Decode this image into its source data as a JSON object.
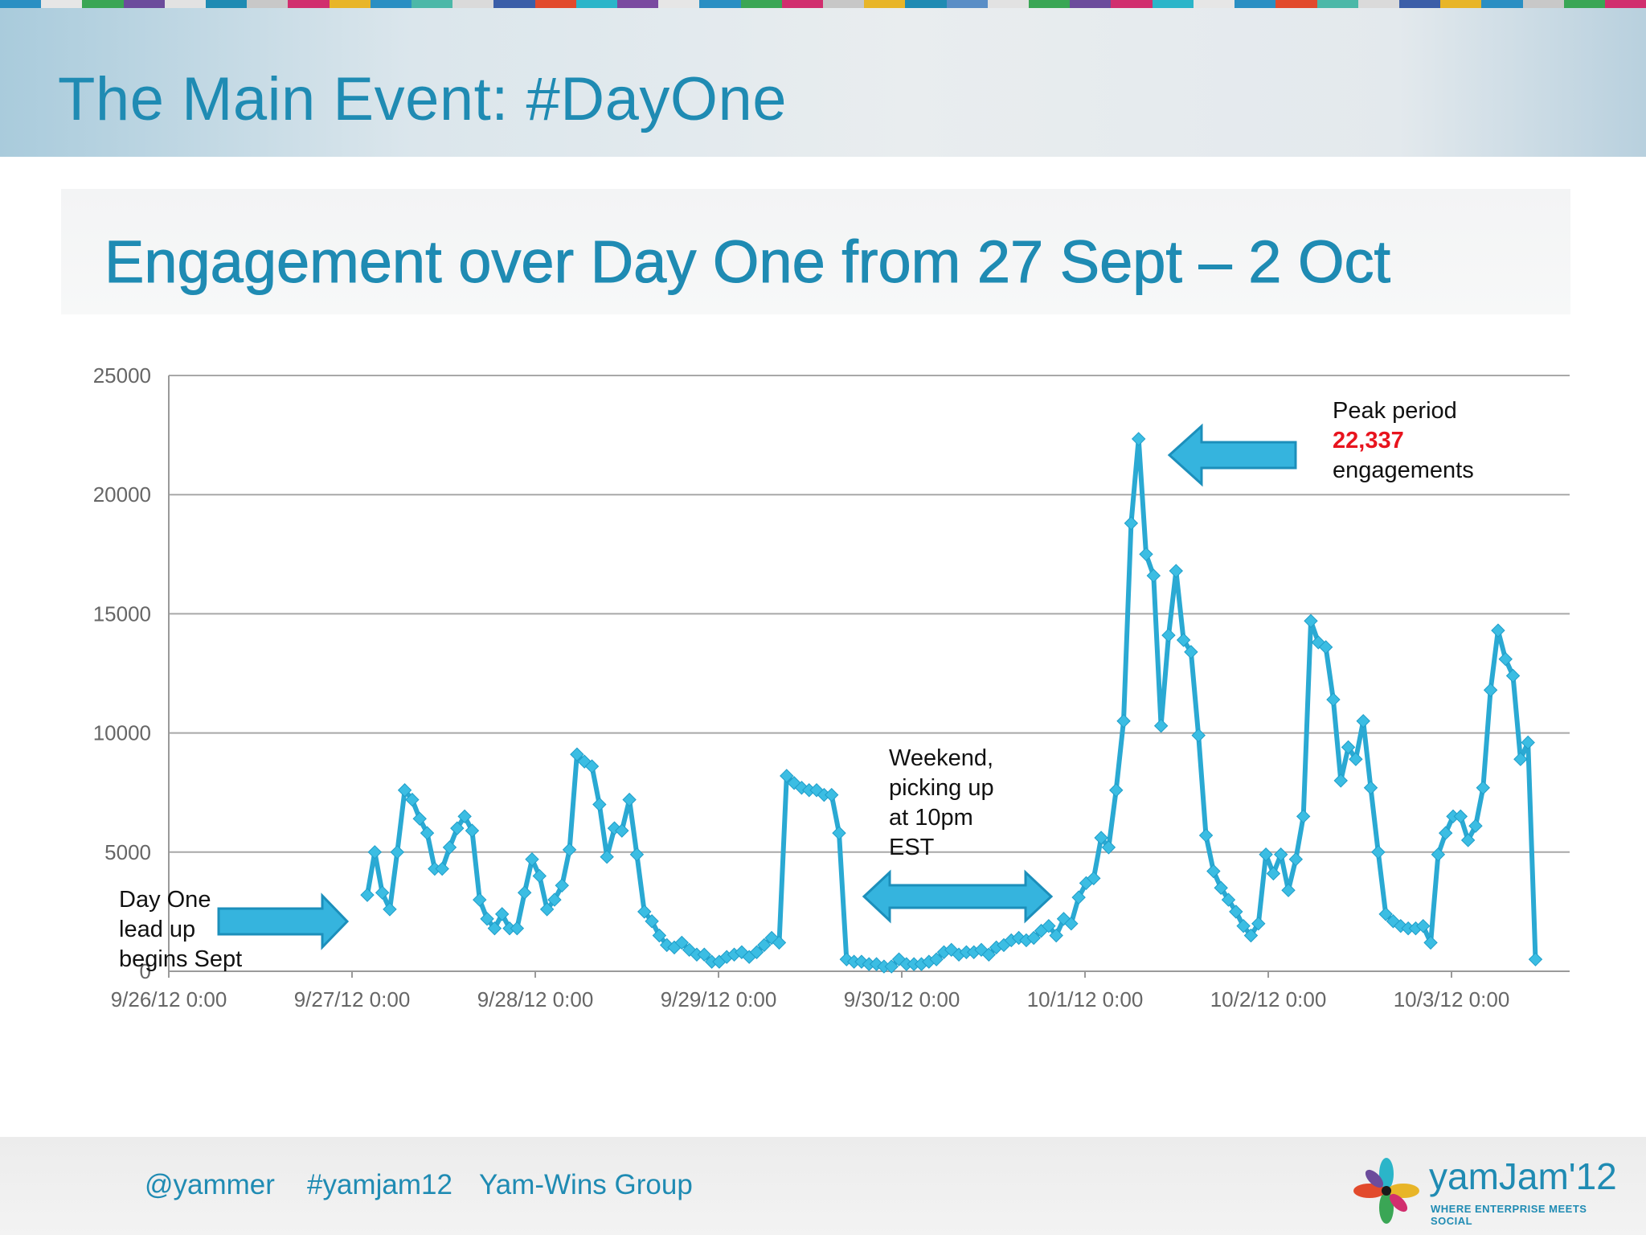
{
  "slide": {
    "title": "The Main Event: #DayOne",
    "stripe_colors": [
      "#2a8fc3",
      "#e6e6e6",
      "#3aa655",
      "#6c4c9c",
      "#e2e2e2",
      "#1f8bb3",
      "#c8c8c8",
      "#d12e6e",
      "#e8b528",
      "#2a8fc3",
      "#4cb8a8",
      "#dadada",
      "#3b5ea8",
      "#e24a2c",
      "#2bb5c9",
      "#7a4aa0",
      "#e6e6e6",
      "#2a8fc3",
      "#3aa655",
      "#d12e6e",
      "#c7c7c7",
      "#e8b528",
      "#1f8bb3",
      "#5a8ec6",
      "#e2e2e2",
      "#3aa655",
      "#6c4c9c",
      "#d12e6e",
      "#2bb5c9",
      "#e6e6e6",
      "#2a8fc3",
      "#e24a2c",
      "#4cb8a8",
      "#dadada",
      "#3b5ea8",
      "#e8b528",
      "#2a8fc3",
      "#c8c8c8",
      "#3aa655",
      "#d12e6e"
    ]
  },
  "chart_data": {
    "type": "line",
    "title": "Engagement over Day One from 27 Sept – 2 Oct",
    "xlabel": "",
    "ylabel": "",
    "ylim": [
      0,
      25000
    ],
    "yticks": [
      "25000",
      "20000",
      "15000",
      "10000",
      "5000",
      "0"
    ],
    "xticks": [
      "9/26/12 0:00",
      "9/27/12 0:00",
      "9/28/12 0:00",
      "9/29/12 0:00",
      "9/30/12 0:00",
      "10/1/12 0:00",
      "10/2/12 0:00",
      "10/3/12 0:00"
    ],
    "grid": true,
    "line_color": "#2aa9d3",
    "series": [
      {
        "values": [
          3200,
          5000,
          3300,
          2600,
          5000,
          7600,
          7200,
          6400,
          5800,
          4300,
          4300,
          5200,
          6000,
          6500,
          5900,
          3000,
          2200,
          1800,
          2400,
          1800,
          1800,
          3300,
          4700,
          4000,
          2600,
          3000,
          3600,
          5100,
          9100,
          8800,
          8600,
          7000,
          4800,
          6000,
          5900,
          7200,
          4900,
          2500,
          2100,
          1500,
          1100,
          1000,
          1200,
          900,
          700,
          700,
          400,
          400,
          600,
          700,
          800,
          600,
          800,
          1100,
          1400,
          1200,
          8200,
          7900,
          7700,
          7600,
          7600,
          7400,
          7400,
          5800,
          500,
          400,
          400,
          300,
          300,
          200,
          200,
          500,
          300,
          300,
          300,
          400,
          500,
          800,
          900,
          700,
          800,
          800,
          900,
          700,
          1000,
          1100,
          1300,
          1400,
          1300,
          1400,
          1700,
          1900,
          1500,
          2200,
          2000,
          3100,
          3700,
          3900,
          5600,
          5200,
          7600,
          10500,
          18800,
          22337,
          17500,
          16600,
          10300,
          14100,
          16800,
          13900,
          13400,
          9900,
          5700,
          4200,
          3500,
          3000,
          2500,
          1900,
          1500,
          2000,
          4900,
          4100,
          4900,
          3400,
          4700,
          6500,
          14700,
          13800,
          13600,
          11400,
          8000,
          9400,
          8900,
          10500,
          7700,
          5000,
          2400,
          2100,
          1900,
          1800,
          1800,
          1900,
          1200,
          4900,
          5800,
          6500,
          6500,
          5500,
          6100,
          7700,
          11800,
          14300,
          13100,
          12400,
          8900,
          9600,
          500
        ],
        "x_range": [
          "9/27/12 2:00",
          "10/3/12 11:00"
        ]
      }
    ],
    "annotations": {
      "peak_line1": "Peak period",
      "peak_value": "22,337",
      "peak_line3": "engagements",
      "peak_value_color": "#e8141e",
      "weekend": [
        "Weekend,",
        "picking up",
        "at 10pm",
        "EST"
      ],
      "dayone": [
        "Day One",
        "lead up",
        "begins Sept"
      ]
    }
  },
  "footer": {
    "handle": "@yammer",
    "hashtag": "#yamjam12",
    "group": "Yam-Wins Group",
    "logo_word": "yamJam'12",
    "logo_tagline": "WHERE ENTERPRISE MEETS SOCIAL"
  }
}
